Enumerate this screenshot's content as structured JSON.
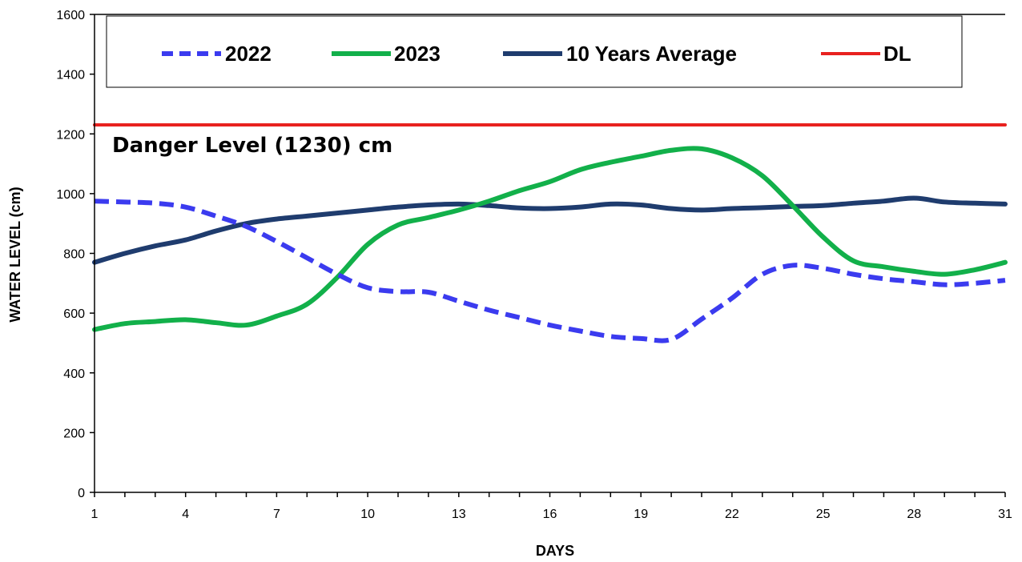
{
  "chart_data": {
    "type": "line",
    "title": "",
    "xlabel": "DAYS",
    "ylabel": "WATER LEVEL (cm)",
    "xlim": [
      1,
      31
    ],
    "ylim": [
      0,
      1600
    ],
    "x_ticks": [
      1,
      4,
      7,
      10,
      13,
      16,
      19,
      22,
      25,
      28,
      31
    ],
    "y_ticks": [
      0,
      200,
      400,
      600,
      800,
      1000,
      1200,
      1400,
      1600
    ],
    "grid": false,
    "legend_placement": "top",
    "x": [
      1,
      2,
      3,
      4,
      5,
      6,
      7,
      8,
      9,
      10,
      11,
      12,
      13,
      14,
      15,
      16,
      17,
      18,
      19,
      20,
      21,
      22,
      23,
      24,
      25,
      26,
      27,
      28,
      29,
      30,
      31
    ],
    "series": [
      {
        "name": "2022",
        "color": "#3b3bef",
        "style": "dashed",
        "values": [
          975,
          972,
          968,
          955,
          925,
          890,
          840,
          785,
          730,
          685,
          672,
          670,
          640,
          610,
          585,
          560,
          540,
          522,
          515,
          512,
          580,
          650,
          730,
          760,
          750,
          730,
          715,
          705,
          695,
          700,
          710
        ]
      },
      {
        "name": "2023",
        "color": "#12b04a",
        "style": "solid",
        "values": [
          545,
          565,
          572,
          578,
          568,
          560,
          590,
          630,
          720,
          830,
          895,
          920,
          945,
          975,
          1010,
          1040,
          1080,
          1105,
          1125,
          1145,
          1150,
          1120,
          1060,
          960,
          855,
          775,
          755,
          740,
          730,
          745,
          770
        ]
      },
      {
        "name": "10 Years Average",
        "color": "#1f3c6e",
        "style": "solid",
        "values": [
          770,
          800,
          825,
          845,
          875,
          900,
          915,
          925,
          935,
          945,
          955,
          962,
          965,
          960,
          952,
          950,
          955,
          965,
          962,
          950,
          945,
          950,
          953,
          957,
          960,
          968,
          975,
          985,
          972,
          968,
          965
        ]
      },
      {
        "name": "DL",
        "color": "#e8211f",
        "style": "solid",
        "values": [
          1230,
          1230,
          1230,
          1230,
          1230,
          1230,
          1230,
          1230,
          1230,
          1230,
          1230,
          1230,
          1230,
          1230,
          1230,
          1230,
          1230,
          1230,
          1230,
          1230,
          1230,
          1230,
          1230,
          1230,
          1230,
          1230,
          1230,
          1230,
          1230,
          1230,
          1230
        ]
      }
    ],
    "annotations": [
      {
        "text": "Danger Level (1230) cm"
      }
    ]
  }
}
